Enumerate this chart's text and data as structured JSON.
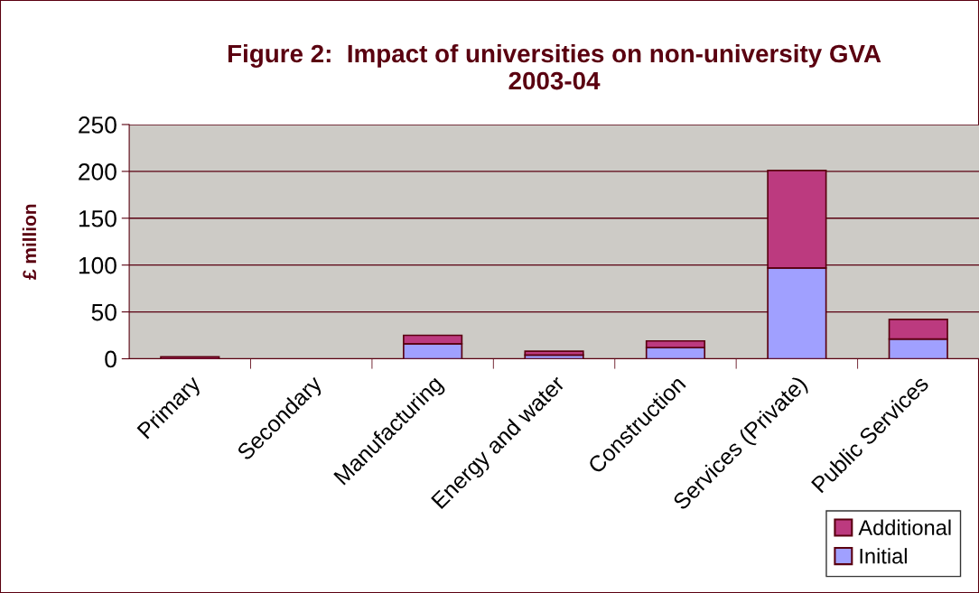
{
  "chart_data": {
    "type": "bar",
    "title": "Figure 2:  Impact of universities on non-university GVA\n2003-04",
    "ylabel": "£ million",
    "categories": [
      "Primary",
      "Secondary",
      "Manufacturing",
      "Energy and water",
      "Construction",
      "Services (Private)",
      "Public Services"
    ],
    "stacked": true,
    "series": [
      {
        "name": "Initial",
        "color": "#a0a0ff",
        "values": [
          null,
          0,
          16,
          4,
          12,
          97,
          21
        ]
      },
      {
        "name": "Additional",
        "color": "#bc3a7f",
        "values": [
          2,
          0,
          9,
          4,
          7,
          104,
          21
        ]
      }
    ],
    "ylim": [
      0,
      250
    ],
    "yticks": [
      0,
      50,
      100,
      150,
      200,
      250
    ],
    "grid": "y",
    "legend": "bottom right"
  }
}
